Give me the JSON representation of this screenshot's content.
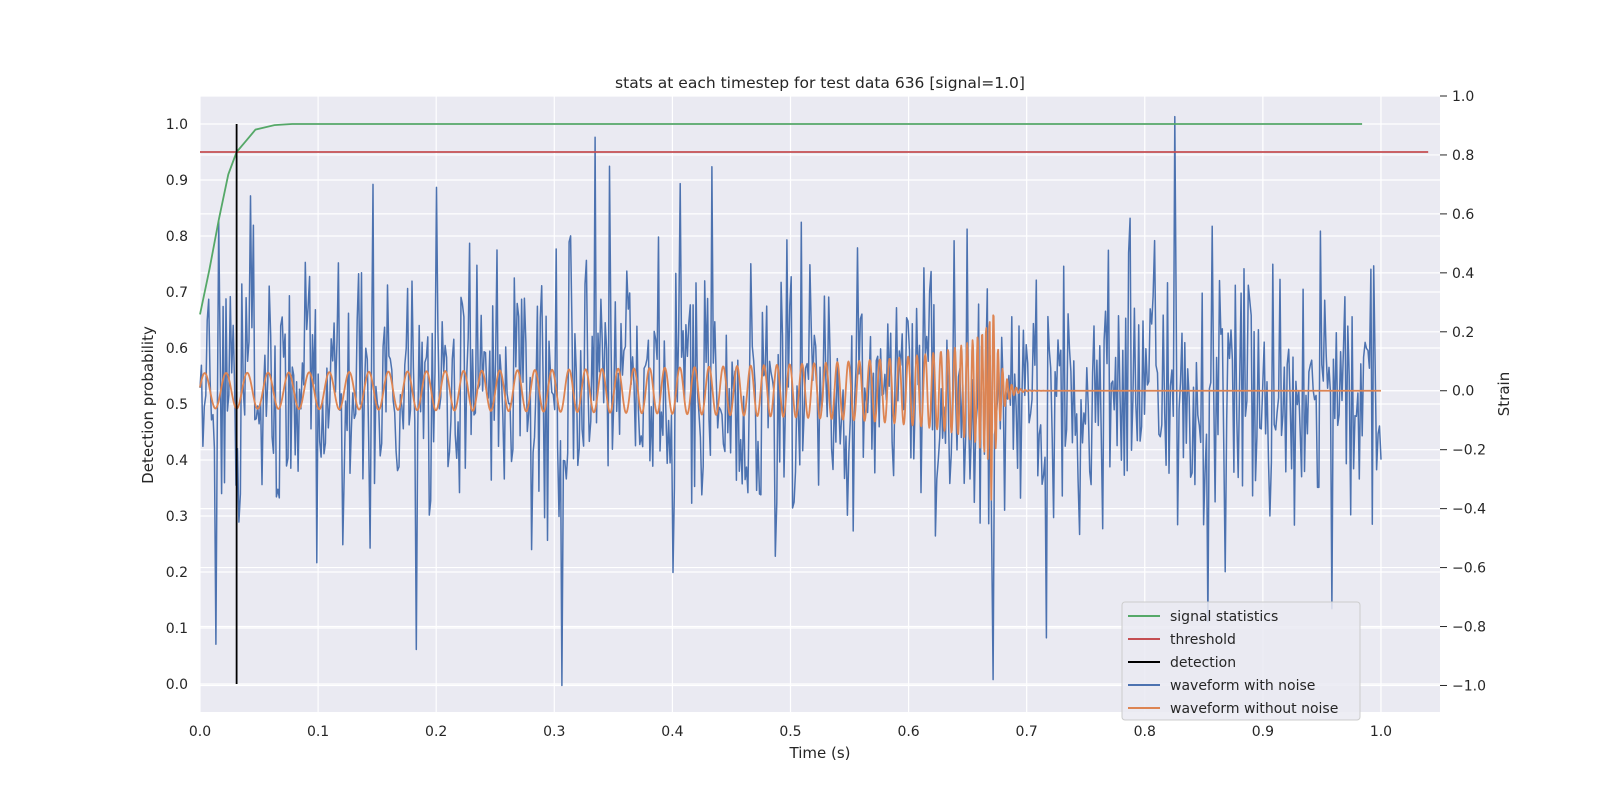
{
  "chart_data": {
    "type": "line",
    "title": "stats at each timestep for test data 636 [signal=1.0]",
    "xlabel": "Time (s)",
    "ylabel_left": "Detection probability",
    "ylabel_right": "Strain",
    "xlim": [
      0.0,
      1.05
    ],
    "ylim_left": [
      -0.05,
      1.05
    ],
    "ylim_right": [
      -1.09,
      1.0
    ],
    "x_ticks": [
      "0.0",
      "0.1",
      "0.2",
      "0.3",
      "0.4",
      "0.5",
      "0.6",
      "0.7",
      "0.8",
      "0.9",
      "1.0"
    ],
    "y_left_ticks": [
      "0.0",
      "0.1",
      "0.2",
      "0.3",
      "0.4",
      "0.5",
      "0.6",
      "0.7",
      "0.8",
      "0.9",
      "1.0"
    ],
    "y_right_ticks": [
      "−1.0",
      "−0.8",
      "−0.6",
      "−0.4",
      "−0.2",
      "0.0",
      "0.2",
      "0.4",
      "0.6",
      "0.8",
      "1.0"
    ],
    "grid": true,
    "legend_position": "lower-right",
    "colors": {
      "signal": "#55a868",
      "threshold": "#c44e52",
      "detection": "#000000",
      "noisy": "#4c72b0",
      "clean": "#dd8452",
      "background": "#eaeaf2",
      "grid": "#ffffff"
    },
    "signal_statistics": {
      "name": "signal statistics",
      "axis": "left",
      "x": [
        0.0,
        0.008,
        0.016,
        0.024,
        0.031,
        0.039,
        0.047,
        0.063,
        0.078,
        0.1,
        0.2,
        0.4,
        0.6,
        0.8,
        0.984
      ],
      "y": [
        0.66,
        0.74,
        0.83,
        0.91,
        0.95,
        0.97,
        0.99,
        0.998,
        1.0,
        1.0,
        1.0,
        1.0,
        1.0,
        1.0,
        1.0
      ]
    },
    "threshold": {
      "name": "threshold",
      "axis": "left",
      "value": 0.95,
      "x_range": [
        0.0,
        1.04
      ]
    },
    "detection": {
      "name": "detection",
      "axis": "left",
      "x": 0.031,
      "y_range": [
        0.0,
        1.0
      ]
    },
    "waveform_with_noise": {
      "name": "waveform with noise",
      "axis": "right",
      "x_range": [
        0.0,
        1.0
      ],
      "samples": 820,
      "rms": 0.24,
      "max": 0.93,
      "min": -1.0,
      "notable_peaks": [
        {
          "x": 0.334,
          "y": 0.86
        },
        {
          "x": 0.826,
          "y": 0.93
        },
        {
          "x": 0.307,
          "y": -1.0
        },
        {
          "x": 0.671,
          "y": -0.98
        },
        {
          "x": 0.959,
          "y": -0.74
        },
        {
          "x": 0.434,
          "y": 0.76
        },
        {
          "x": 0.2,
          "y": 0.69
        },
        {
          "x": 0.146,
          "y": 0.7
        }
      ]
    },
    "waveform_without_noise": {
      "name": "waveform without noise",
      "axis": "right",
      "x_range": [
        0.0,
        1.0
      ],
      "description_values": {
        "start_amplitude": 0.06,
        "start_frequency_hz": 55,
        "merger_time": 0.67,
        "peak_amplitude": 0.28,
        "min_value": -0.37,
        "ringdown_end": 0.69,
        "post_merger_value": 0.0
      }
    }
  },
  "legend": {
    "signal": "signal statistics",
    "threshold": "threshold",
    "detection": "detection",
    "noisy": "waveform with noise",
    "clean": "waveform without noise"
  }
}
